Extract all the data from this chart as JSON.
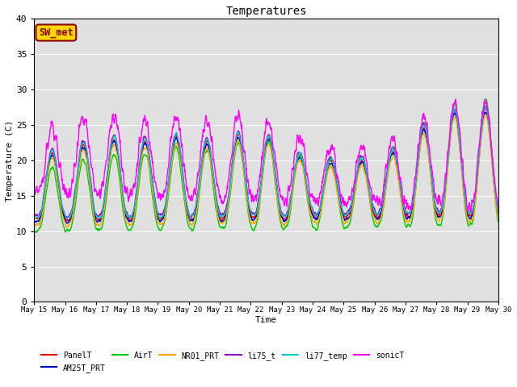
{
  "title": "Temperatures",
  "xlabel": "Time",
  "ylabel": "Temperature (C)",
  "ylim": [
    0,
    40
  ],
  "yticks": [
    0,
    5,
    10,
    15,
    20,
    25,
    30,
    35,
    40
  ],
  "annotation": "SW_met",
  "annotation_color": "#8B0000",
  "annotation_bg": "#FFD700",
  "series_order": [
    "PanelT",
    "AM25T_PRT",
    "AirT",
    "NR01_PRT",
    "li75_t",
    "li77_temp",
    "sonicT"
  ],
  "series_colors": {
    "PanelT": "#FF0000",
    "AM25T_PRT": "#0000CC",
    "AirT": "#00CC00",
    "NR01_PRT": "#FFA500",
    "li75_t": "#9900CC",
    "li77_temp": "#00CCCC",
    "sonicT": "#FF00FF"
  },
  "lw": 1.0,
  "bg_color": "#E0E0E0",
  "fig_bg": "#FFFFFF",
  "n_days": 15,
  "start_day": 15,
  "pts_per_day": 144,
  "tick_every": 1
}
